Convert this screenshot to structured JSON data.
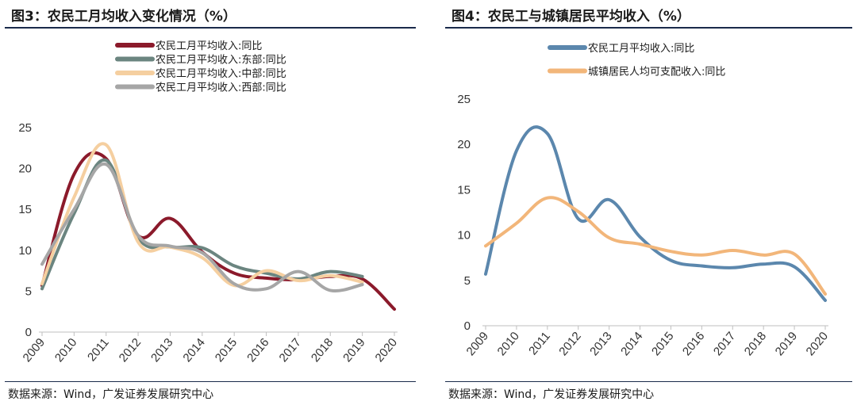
{
  "left": {
    "title": "图3：农民工月均收入变化情况（%）",
    "source": "数据来源：Wind，广发证券发展研究中心"
  },
  "right": {
    "title": "图4：农民工与城镇居民平均收入（%）",
    "source": "数据来源：Wind，广发证券发展研究中心"
  },
  "chart_data": [
    {
      "type": "line",
      "title": "图3：农民工月均收入变化情况（%）",
      "xlabel": "",
      "ylabel": "",
      "categories": [
        "2009",
        "2010",
        "2011",
        "2012",
        "2013",
        "2014",
        "2015",
        "2016",
        "2017",
        "2018",
        "2019",
        "2020"
      ],
      "ylim": [
        0,
        25
      ],
      "yticks": [
        0,
        5,
        10,
        15,
        20,
        25
      ],
      "legend_position": "top-center",
      "series": [
        {
          "name": "农民工月平均收入:同比",
          "color": "#8b1a2b",
          "values": [
            5.7,
            19.3,
            21.2,
            11.8,
            13.9,
            9.8,
            7.2,
            6.6,
            6.4,
            6.8,
            6.5,
            2.8
          ]
        },
        {
          "name": "农民工月平均收入:东部:同比",
          "color": "#6b8580",
          "values": [
            5.3,
            14.5,
            21.0,
            11.5,
            10.4,
            10.3,
            8.1,
            7.2,
            6.5,
            7.4,
            6.8,
            null
          ]
        },
        {
          "name": "农民工月平均收入:中部:同比",
          "color": "#f5cfa0",
          "values": [
            5.9,
            16.5,
            22.9,
            11.0,
            10.4,
            9.1,
            5.7,
            7.5,
            6.3,
            6.9,
            6.1,
            null
          ]
        },
        {
          "name": "农民工月平均收入:西部:同比",
          "color": "#a6a6a6",
          "values": [
            8.3,
            15.0,
            20.5,
            11.8,
            10.5,
            9.7,
            5.9,
            5.3,
            7.4,
            5.1,
            5.8,
            null
          ]
        }
      ]
    },
    {
      "type": "line",
      "title": "图4：农民工与城镇居民平均收入（%）",
      "xlabel": "",
      "ylabel": "",
      "categories": [
        "2009",
        "2010",
        "2011",
        "2012",
        "2013",
        "2014",
        "2015",
        "2016",
        "2017",
        "2018",
        "2019",
        "2020"
      ],
      "ylim": [
        0,
        25
      ],
      "yticks": [
        0,
        5,
        10,
        15,
        20,
        25
      ],
      "legend_position": "top-left",
      "series": [
        {
          "name": "农民工月平均收入:同比",
          "color": "#5b87ad",
          "values": [
            5.7,
            19.3,
            21.2,
            11.8,
            13.9,
            9.8,
            7.2,
            6.6,
            6.4,
            6.8,
            6.5,
            2.8
          ]
        },
        {
          "name": "城镇居民人均可支配收入:同比",
          "color": "#f2b67a",
          "values": [
            8.8,
            11.3,
            14.1,
            12.6,
            9.7,
            9.0,
            8.2,
            7.8,
            8.3,
            7.8,
            7.9,
            3.5
          ]
        }
      ]
    }
  ]
}
